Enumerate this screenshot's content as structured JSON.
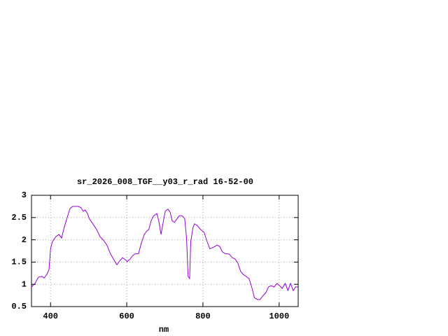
{
  "chart_data": {
    "type": "line",
    "title": "sr_2026_008_TGF__y03_r_rad 16-52-00",
    "x_label": "nm",
    "x": [
      350,
      359,
      368,
      378,
      383,
      390,
      396,
      400,
      405,
      414,
      422,
      429,
      436,
      444,
      451,
      458,
      473,
      480,
      486,
      491,
      497,
      502,
      511,
      521,
      530,
      539,
      548,
      557,
      567,
      574,
      581,
      589,
      594,
      601,
      609,
      616,
      623,
      631,
      638,
      646,
      653,
      658,
      664,
      671,
      679,
      684,
      690,
      695,
      701,
      708,
      714,
      719,
      725,
      730,
      738,
      745,
      752,
      757,
      761,
      765,
      768,
      774,
      778,
      785,
      794,
      803,
      811,
      818,
      827,
      837,
      844,
      851,
      858,
      869,
      877,
      884,
      891,
      899,
      906,
      913,
      921,
      928,
      935,
      943,
      950,
      957,
      965,
      972,
      979,
      987,
      994,
      1001,
      1008,
      1016,
      1023,
      1030,
      1037,
      1043,
      1050
    ],
    "values": [
      0.94,
      1.02,
      1.16,
      1.18,
      1.14,
      1.22,
      1.33,
      1.8,
      1.96,
      2.07,
      2.12,
      2.04,
      2.28,
      2.51,
      2.7,
      2.75,
      2.75,
      2.72,
      2.64,
      2.67,
      2.59,
      2.47,
      2.36,
      2.23,
      2.07,
      1.99,
      1.88,
      1.69,
      1.54,
      1.44,
      1.52,
      1.6,
      1.57,
      1.51,
      1.57,
      1.65,
      1.69,
      1.69,
      1.92,
      2.12,
      2.2,
      2.23,
      2.43,
      2.54,
      2.59,
      2.43,
      2.12,
      2.36,
      2.64,
      2.69,
      2.62,
      2.43,
      2.39,
      2.45,
      2.54,
      2.54,
      2.48,
      2.04,
      1.18,
      1.13,
      1.96,
      2.28,
      2.36,
      2.32,
      2.23,
      2.17,
      1.96,
      1.8,
      1.83,
      1.88,
      1.85,
      1.73,
      1.69,
      1.68,
      1.6,
      1.57,
      1.49,
      1.29,
      1.22,
      1.18,
      1.13,
      0.94,
      0.7,
      0.66,
      0.66,
      0.74,
      0.81,
      0.94,
      0.97,
      0.94,
      1.02,
      0.97,
      0.91,
      1.02,
      0.86,
      1.02,
      0.86,
      0.94,
      0.94
    ],
    "color": "#9400d3",
    "xlim": [
      350,
      1050
    ],
    "xticks": [
      400,
      600,
      800,
      1000
    ],
    "ylim": [
      0.5,
      3
    ],
    "yticks": [
      0.5,
      1,
      1.5,
      2,
      2.5,
      3
    ],
    "grid": true
  }
}
